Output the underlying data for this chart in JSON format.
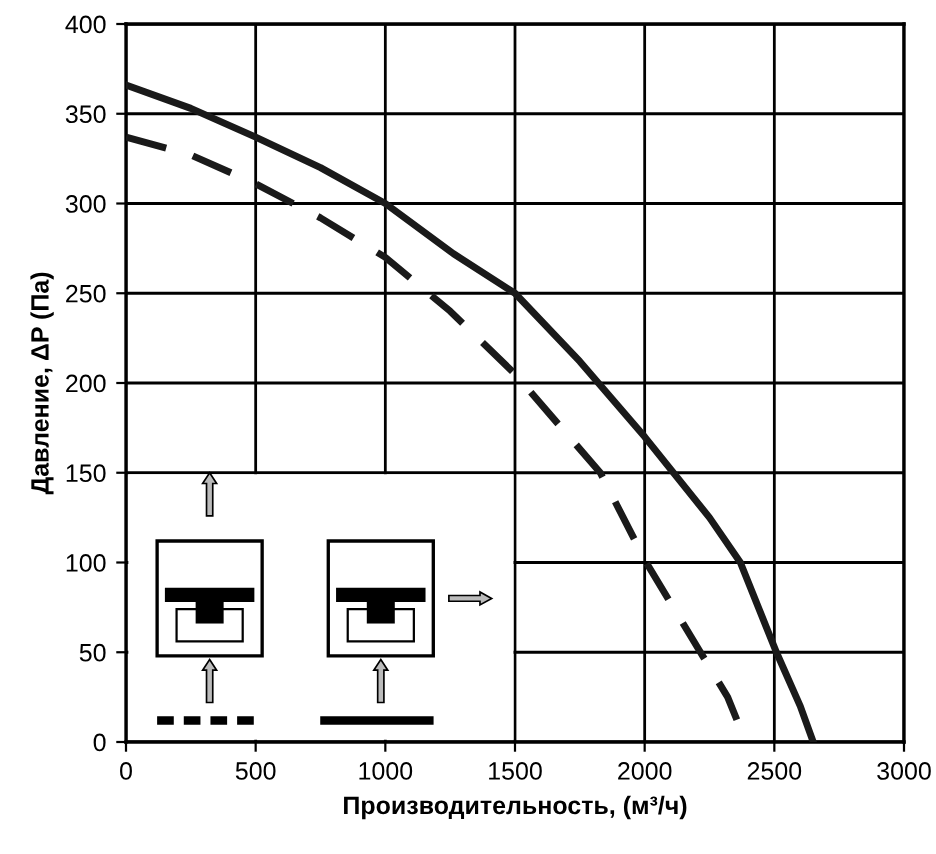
{
  "chart_data": {
    "type": "line",
    "xlabel": "Производительность, (м³/ч)",
    "ylabel": "Давление, ΔP (Па)",
    "xlim": [
      0,
      3000
    ],
    "ylim": [
      0,
      400
    ],
    "xticks": [
      0,
      500,
      1000,
      1500,
      2000,
      2500,
      3000
    ],
    "yticks": [
      0,
      50,
      100,
      150,
      200,
      250,
      300,
      350,
      400
    ],
    "grid": true,
    "series": [
      {
        "color": "#1a1a1a",
        "line_style": "solid",
        "x": [
          0,
          250,
          500,
          750,
          1000,
          1263,
          1500,
          1750,
          2000,
          2250,
          2369,
          2508,
          2600,
          2650
        ],
        "values": [
          366,
          353,
          337,
          320,
          300,
          272,
          250,
          212,
          170,
          125,
          100,
          50,
          20,
          0
        ]
      },
      {
        "color": "#1a1a1a",
        "line_style": "dashed",
        "x": [
          0,
          250,
          500,
          750,
          1000,
          1250,
          1500,
          1829,
          2006,
          2215,
          2320,
          2390
        ],
        "values": [
          337,
          327,
          311,
          292,
          270,
          240,
          205,
          150,
          100,
          50,
          25,
          0
        ]
      }
    ]
  }
}
